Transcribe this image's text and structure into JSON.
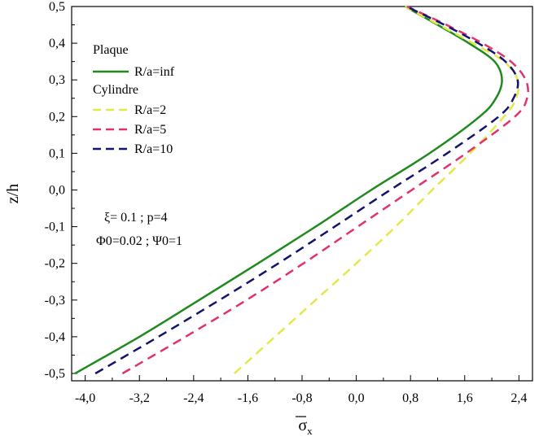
{
  "chart_data": {
    "type": "line",
    "xlabel": "σ",
    "xlabel_sub": "x",
    "ylabel": "z/h",
    "xlim": [
      -4.2,
      2.6
    ],
    "ylim": [
      -0.52,
      0.5
    ],
    "xticks": [
      -4.0,
      -3.2,
      -2.4,
      -1.6,
      -0.8,
      0.0,
      0.8,
      1.6,
      2.4
    ],
    "xtick_labels": [
      "-4,0",
      "-3,2",
      "-2,4",
      "-1,6",
      "-0,8",
      "0,0",
      "0,8",
      "1,6",
      "2,4"
    ],
    "yticks": [
      -0.5,
      -0.4,
      -0.3,
      -0.2,
      -0.1,
      0.0,
      0.1,
      0.2,
      0.3,
      0.4,
      0.5
    ],
    "ytick_labels": [
      "-0,5",
      "-0,4",
      "-0,3",
      "-0,2",
      "-0,1",
      "0,0",
      "0,1",
      "0,2",
      "0,3",
      "0,4",
      "0,5"
    ],
    "legend": {
      "group1_title": "Plaque",
      "group2_title": "Cylindre",
      "position": "top-left"
    },
    "annotation": {
      "line1": "ξ= 0.1 ; p=4",
      "line2": "Φ0=0.02 ; Ψ0=1"
    },
    "series": [
      {
        "name": "R/a=inf",
        "color": "#1e8a1e",
        "dash": "solid",
        "z": [
          -0.5,
          -0.4,
          -0.3,
          -0.2,
          -0.1,
          0.0,
          0.1,
          0.2,
          0.25,
          0.3,
          0.35,
          0.4,
          0.45,
          0.5
        ],
        "sigma": [
          -4.15,
          -3.2,
          -2.32,
          -1.45,
          -0.6,
          0.22,
          1.08,
          1.82,
          2.06,
          2.15,
          2.04,
          1.66,
          1.2,
          0.72
        ]
      },
      {
        "name": "R/a=2",
        "color": "#e3e84a",
        "dash": "dashed",
        "z": [
          -0.5,
          -0.4,
          -0.3,
          -0.2,
          -0.1,
          0.0,
          0.1,
          0.2,
          0.25,
          0.3,
          0.35,
          0.4,
          0.45,
          0.5
        ],
        "sigma": [
          -1.8,
          -1.2,
          -0.6,
          0.0,
          0.58,
          1.12,
          1.68,
          2.18,
          2.36,
          2.38,
          2.18,
          1.72,
          1.22,
          0.72
        ]
      },
      {
        "name": "R/a=5",
        "color": "#e0326f",
        "dash": "dashed",
        "z": [
          -0.5,
          -0.4,
          -0.3,
          -0.2,
          -0.1,
          0.0,
          0.1,
          0.2,
          0.25,
          0.3,
          0.35,
          0.4,
          0.45,
          0.5
        ],
        "sigma": [
          -3.45,
          -2.52,
          -1.62,
          -0.78,
          0.02,
          0.82,
          1.62,
          2.34,
          2.52,
          2.5,
          2.28,
          1.86,
          1.33,
          0.75
        ]
      },
      {
        "name": "R/a=10",
        "color": "#14146e",
        "dash": "dashed",
        "z": [
          -0.5,
          -0.4,
          -0.3,
          -0.2,
          -0.1,
          0.0,
          0.1,
          0.2,
          0.25,
          0.3,
          0.35,
          0.4,
          0.45,
          0.5
        ],
        "sigma": [
          -3.85,
          -2.92,
          -2.02,
          -1.15,
          -0.32,
          0.5,
          1.34,
          2.1,
          2.32,
          2.38,
          2.2,
          1.8,
          1.3,
          0.74
        ]
      }
    ]
  }
}
